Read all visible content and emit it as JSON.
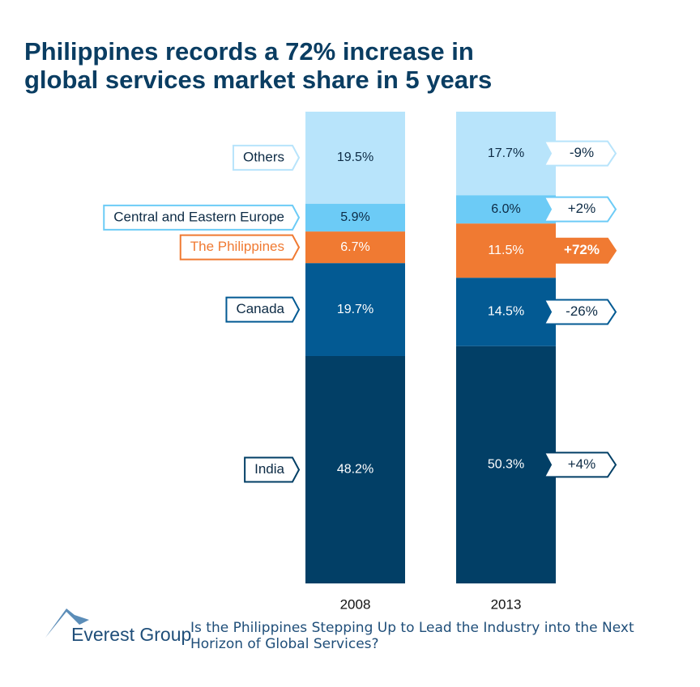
{
  "chart_data": {
    "type": "stacked_bar",
    "title": [
      "Philippines records a 72% increase in",
      "global services market share in 5 years"
    ],
    "categories": [
      "2008",
      "2013"
    ],
    "ylim": [
      0,
      100
    ],
    "series": [
      {
        "name": "India",
        "color": "#023f66",
        "label_color": "#ffffff",
        "values": [
          48.2,
          50.3
        ],
        "value_labels": [
          "48.2%",
          "50.3%"
        ],
        "change": 4,
        "change_label": "+4%"
      },
      {
        "name": "Canada",
        "color": "#035a93",
        "label_color": "#ffffff",
        "values": [
          19.7,
          14.5
        ],
        "value_labels": [
          "19.7%",
          "14.5%"
        ],
        "change": -26,
        "change_label": "-26%"
      },
      {
        "name": "The Philippines",
        "color": "#f07a32",
        "label_color": "#ffffff",
        "values": [
          6.7,
          11.5
        ],
        "value_labels": [
          "6.7%",
          "11.5%"
        ],
        "change": 72,
        "change_label": "+72%"
      },
      {
        "name": "Central and Eastern Europe",
        "color": "#6ccbf6",
        "label_color": "#0d2b45",
        "values": [
          5.9,
          6.0
        ],
        "value_labels": [
          "5.9%",
          "6.0%"
        ],
        "change": 2,
        "change_label": "+2%"
      },
      {
        "name": "Others",
        "color": "#b8e4fb",
        "label_color": "#0d2b45",
        "values": [
          19.5,
          17.7
        ],
        "value_labels": [
          "19.5%",
          "17.7%"
        ],
        "change": -9,
        "change_label": "-9%"
      }
    ]
  },
  "footer": {
    "logo": "Everest Group",
    "caption": "Is the Philippines Stepping Up to Lead the Industry into the Next Horizon of Global Services?"
  }
}
